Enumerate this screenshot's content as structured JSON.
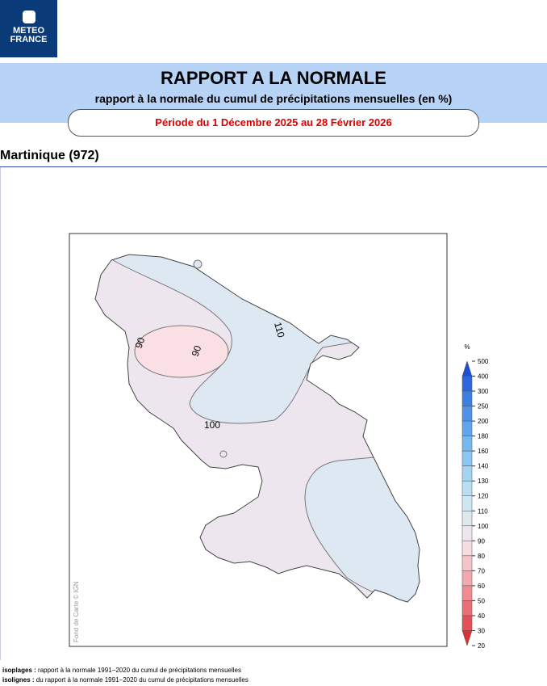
{
  "logo": {
    "line1": "METEO",
    "line2": "FRANCE"
  },
  "header": {
    "title": "RAPPORT A LA NORMALE",
    "subtitle": "rapport à la normale du cumul de précipitations mensuelles (en %)",
    "period": "Période du 1 Décembre 2025 au 28 Février 2026"
  },
  "region": "Martinique (972)",
  "map": {
    "contour_labels": [
      110,
      90,
      90,
      100
    ],
    "credit": "Fond de Carte © IGN"
  },
  "colorbar": {
    "unit": "%",
    "ticks": [
      500,
      400,
      300,
      250,
      200,
      180,
      160,
      140,
      130,
      120,
      110,
      100,
      90,
      80,
      70,
      60,
      50,
      40,
      30,
      20
    ],
    "colors": [
      "#1f4fd0",
      "#2d67dc",
      "#3c7fe3",
      "#4d93e8",
      "#5fa6ec",
      "#74b8f0",
      "#8ac8f3",
      "#a2d4f4",
      "#b9def4",
      "#cde6f3",
      "#dde8f1",
      "#ede6ee",
      "#f7dde0",
      "#f5c4c8",
      "#f2a9ae",
      "#ee8c92",
      "#ea6e75",
      "#e45057",
      "#dc2f36"
    ]
  },
  "footer": {
    "isoplages_key": "isoplages :",
    "isoplages_text": "rapport à la normale 1991−2020 du cumul de précipitations mensuelles",
    "isolignes_key": "isolignes :",
    "isolignes_text": "du rapport à la normale 1991−2020 du cumul de précipitations mensuelles"
  }
}
